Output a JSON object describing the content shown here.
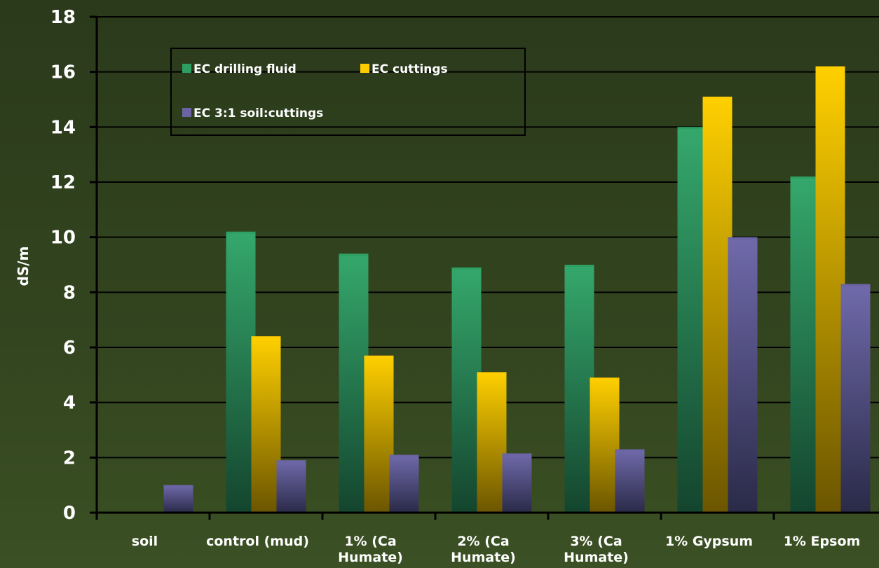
{
  "chart_data": {
    "type": "bar",
    "title": "",
    "xlabel": "",
    "ylabel": "dS/m",
    "ylim": [
      0,
      18
    ],
    "yticks": [
      0,
      2,
      4,
      6,
      8,
      10,
      12,
      14,
      16,
      18
    ],
    "grid": true,
    "legend_position": "top-left",
    "categories": [
      [
        "soil"
      ],
      [
        "control (mud)"
      ],
      [
        "1% (Ca",
        "Humate)"
      ],
      [
        "2% (Ca",
        "Humate)"
      ],
      [
        "3% (Ca",
        "Humate)"
      ],
      [
        "1% Gypsum"
      ],
      [
        "1% Epsom"
      ]
    ],
    "series": [
      {
        "name": "EC drilling fluid",
        "color": "#2e9e63",
        "values": [
          null,
          10.2,
          9.4,
          8.9,
          9.0,
          14.0,
          12.2
        ]
      },
      {
        "name": "EC cuttings",
        "color": "#ffcc00",
        "values": [
          null,
          6.4,
          5.7,
          5.1,
          4.9,
          15.1,
          16.2
        ]
      },
      {
        "name": "EC 3:1 soil:cuttings",
        "color": "#6a64a4",
        "values": [
          1.0,
          1.9,
          2.1,
          2.15,
          2.3,
          10.0,
          8.3
        ]
      }
    ]
  }
}
